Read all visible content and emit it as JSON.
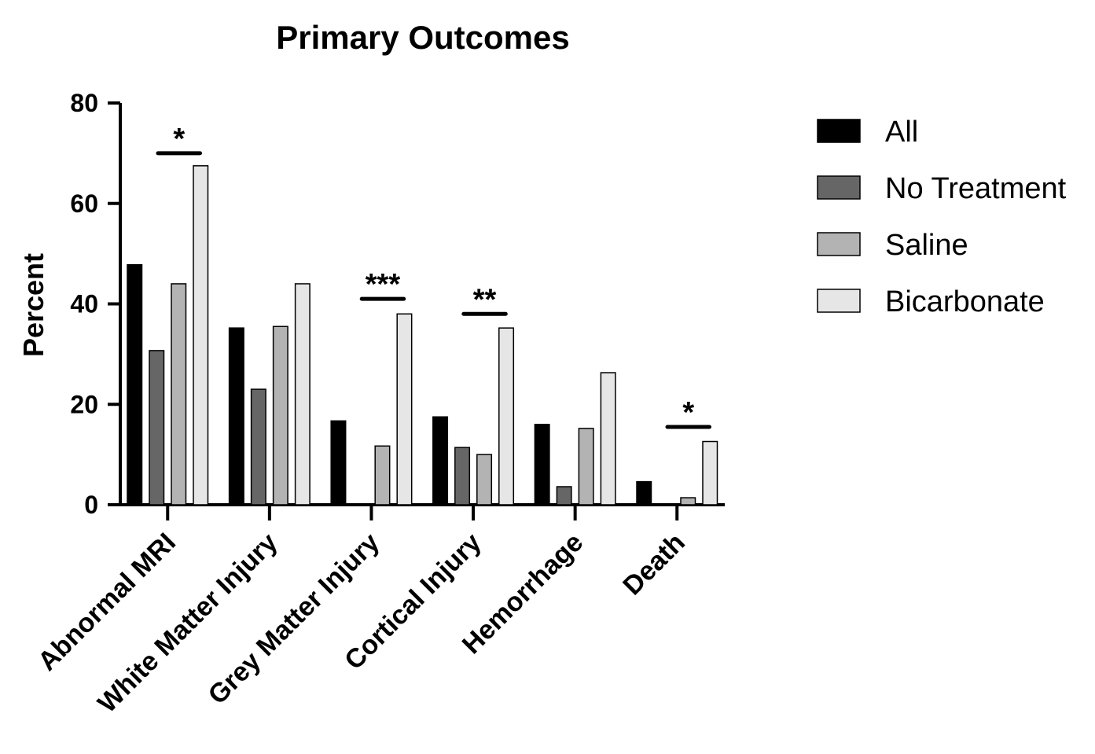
{
  "chart_data": {
    "type": "bar",
    "title": "Primary Outcomes",
    "ylabel": "Percent",
    "xlabel": "",
    "ylim": [
      0,
      80
    ],
    "yticks": [
      0,
      20,
      40,
      60,
      80
    ],
    "categories": [
      "Abnormal MRI",
      "White Matter Injury",
      "Grey Matter Injury",
      "Cortical Injury",
      "Hemorrhage",
      "Death"
    ],
    "series": [
      {
        "name": "All",
        "color": "#000000",
        "values": [
          47.8,
          35.2,
          16.7,
          17.5,
          16.0,
          4.6
        ]
      },
      {
        "name": "No Treatment",
        "color": "#666666",
        "values": [
          30.7,
          23.0,
          0,
          11.4,
          3.6,
          0
        ]
      },
      {
        "name": "Saline",
        "color": "#b3b3b3",
        "values": [
          44.0,
          35.5,
          11.7,
          10.0,
          15.2,
          1.4
        ]
      },
      {
        "name": "Bicarbonate",
        "color": "#e6e6e6",
        "values": [
          67.5,
          44.0,
          38.0,
          35.2,
          26.3,
          12.6
        ]
      }
    ],
    "significance": [
      {
        "category": "Abnormal MRI",
        "label": "*",
        "level": 70
      },
      {
        "category": "Grey Matter Injury",
        "label": "***",
        "level": 41
      },
      {
        "category": "Cortical Injury",
        "label": "**",
        "level": 38
      },
      {
        "category": "Death",
        "label": "*",
        "level": 15.5
      }
    ],
    "grid": false,
    "legend_position": "right"
  }
}
